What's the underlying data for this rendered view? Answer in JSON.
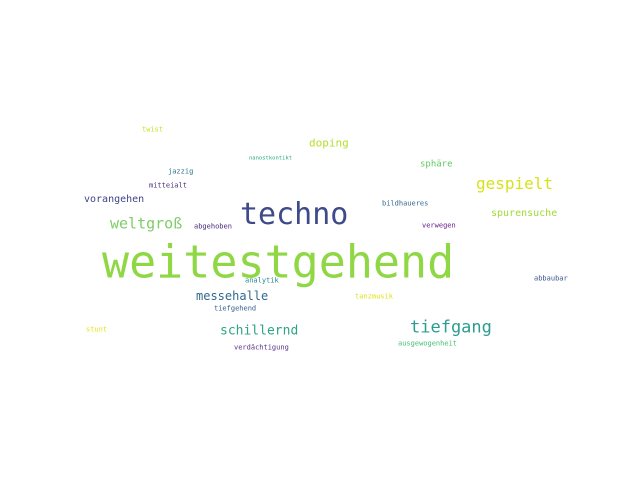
{
  "wordcloud": {
    "words": [
      {
        "text": "weitestgehend",
        "color": "#8fd744"
      },
      {
        "text": "techno",
        "color": "#3e4a89"
      },
      {
        "text": "gespielt",
        "color": "#d7e219"
      },
      {
        "text": "tiefgang",
        "color": "#2a9d8f"
      },
      {
        "text": "weltgroß",
        "color": "#7fcd66"
      },
      {
        "text": "schillernd",
        "color": "#2ea484"
      },
      {
        "text": "messehalle",
        "color": "#31688e"
      },
      {
        "text": "doping",
        "color": "#b5de2b"
      },
      {
        "text": "spurensuche",
        "color": "#a2da37"
      },
      {
        "text": "vorangehen",
        "color": "#414487"
      },
      {
        "text": "sphäre",
        "color": "#5ec962"
      },
      {
        "text": "twist",
        "color": "#c8e020"
      },
      {
        "text": "nanostkontikt",
        "color": "#26a784"
      },
      {
        "text": "jazzig",
        "color": "#2c728e"
      },
      {
        "text": "mitteialt",
        "color": "#472d7b"
      },
      {
        "text": "bildhaueres",
        "color": "#31688e"
      },
      {
        "text": "abgehoben",
        "color": "#482878"
      },
      {
        "text": "verwegen",
        "color": "#6a1e8a"
      },
      {
        "text": "abbaubar",
        "color": "#3b528b"
      },
      {
        "text": "analytik",
        "color": "#24868e"
      },
      {
        "text": "tiefgehend",
        "color": "#355f8d"
      },
      {
        "text": "tanzmusik",
        "color": "#dde318"
      },
      {
        "text": "stunt",
        "color": "#e2e418"
      },
      {
        "text": "verdächtigung",
        "color": "#5b3286"
      },
      {
        "text": "ausgewogenheit",
        "color": "#44bf70"
      }
    ]
  }
}
